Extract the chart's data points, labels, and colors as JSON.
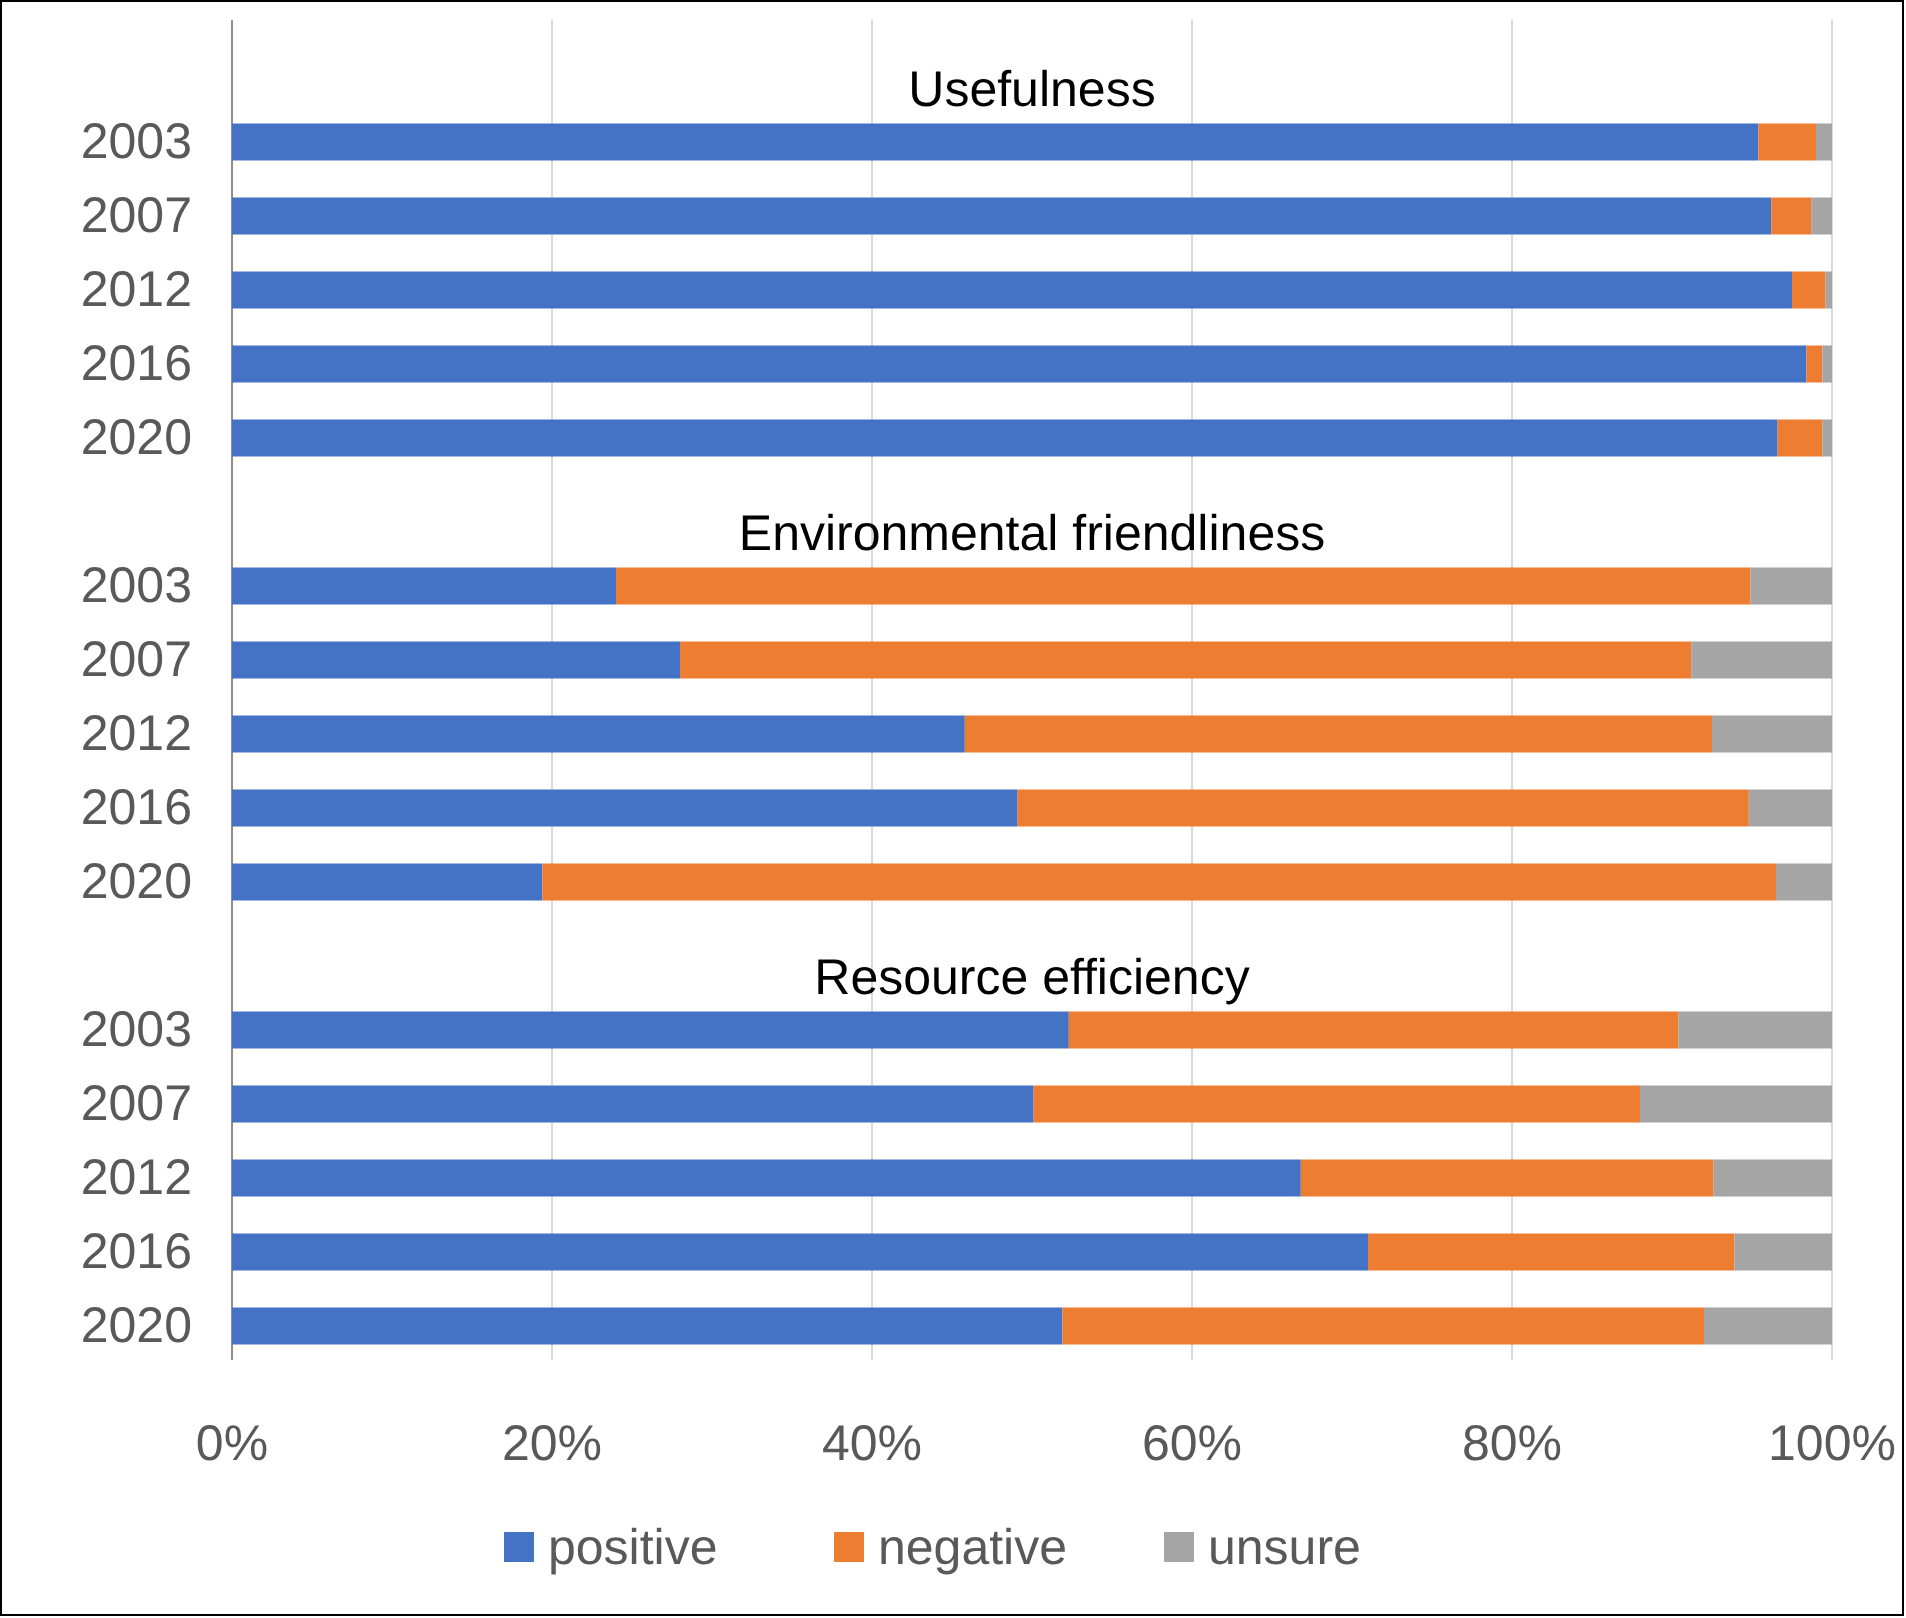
{
  "chart_data": [
    {
      "type": "bar",
      "title": "Usefulness",
      "orientation": "horizontal",
      "stacked": true,
      "categories": [
        "2003",
        "2007",
        "2012",
        "2016",
        "2020"
      ],
      "series": [
        {
          "color": "#4472c4",
          "values": [
            95.4,
            96.2,
            97.5,
            98.4,
            96.6
          ]
        },
        {
          "color": "#ed7d31",
          "values": [
            3.6,
            2.5,
            2.1,
            1.0,
            2.8
          ]
        },
        {
          "color": "#a5a5a5",
          "values": [
            1.0,
            1.3,
            0.4,
            0.6,
            0.6
          ]
        }
      ],
      "xlim": [
        0,
        100
      ],
      "xticks": [
        {
          "value": 0,
          "label": null
        },
        {
          "value": 20,
          "label": null
        },
        {
          "value": 40,
          "label": null
        },
        {
          "value": 60,
          "label": null
        },
        {
          "value": 80,
          "label": null
        },
        {
          "value": 100,
          "label": null
        }
      ],
      "grid": "x",
      "tick_labels": "y",
      "legend": false
    },
    {
      "type": "bar",
      "title": "Environmental friendliness",
      "orientation": "horizontal",
      "stacked": true,
      "categories": [
        "2003",
        "2007",
        "2012",
        "2016",
        "2020"
      ],
      "series": [
        {
          "color": "#4472c4",
          "values": [
            24,
            28,
            45.8,
            49.1,
            19.4
          ]
        },
        {
          "color": "#ed7d31",
          "values": [
            70.9,
            63.2,
            46.7,
            45.7,
            77.1
          ]
        },
        {
          "color": "#a5a5a5",
          "values": [
            5.1,
            8.8,
            7.5,
            5.2,
            3.5
          ]
        }
      ],
      "xlim": [
        0,
        100
      ],
      "xticks": [
        {
          "value": 0,
          "label": null
        },
        {
          "value": 20,
          "label": null
        },
        {
          "value": 40,
          "label": null
        },
        {
          "value": 60,
          "label": null
        },
        {
          "value": 80,
          "label": null
        },
        {
          "value": 100,
          "label": null
        }
      ],
      "grid": "x",
      "tick_labels": "y",
      "legend": false
    },
    {
      "type": "bar",
      "title": "Resource efficiency",
      "orientation": "horizontal",
      "stacked": true,
      "categories": [
        "2003",
        "2007",
        "2012",
        "2016",
        "2020"
      ],
      "series": [
        {
          "name": "positive",
          "color": "#4472c4",
          "values": [
            52.3,
            50.1,
            66.8,
            71,
            51.9
          ]
        },
        {
          "name": "negative",
          "color": "#ed7d31",
          "values": [
            38.1,
            37.9,
            25.8,
            22.9,
            40.1
          ]
        },
        {
          "name": "unsure",
          "color": "#a5a5a5",
          "values": [
            9.6,
            12,
            7.4,
            6.1,
            8
          ]
        }
      ],
      "xlim": [
        0,
        100
      ],
      "xticks": [
        {
          "value": 0,
          "label": "0%"
        },
        {
          "value": 20,
          "label": "20%"
        },
        {
          "value": 40,
          "label": "40%"
        },
        {
          "value": 60,
          "label": "60%"
        },
        {
          "value": 80,
          "label": "80%"
        },
        {
          "value": 100,
          "label": "100%"
        }
      ],
      "grid": "x",
      "legend": "bottom"
    }
  ]
}
